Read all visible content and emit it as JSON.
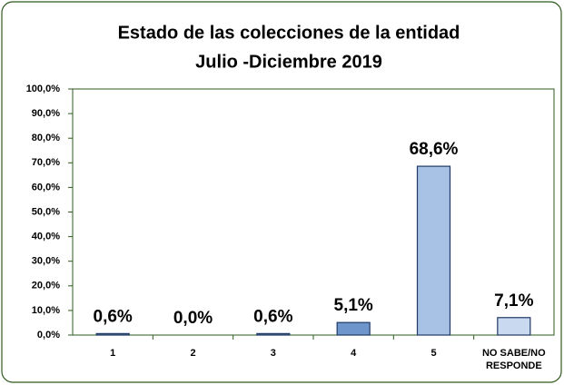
{
  "chart_data": {
    "type": "bar",
    "title": "Estado de las colecciones de la entidad",
    "subtitle": "Julio -Diciembre 2019",
    "categories": [
      "1",
      "2",
      "3",
      "4",
      "5",
      "NO SABE/NO RESPONDE"
    ],
    "values": [
      0.6,
      0.0,
      0.6,
      5.1,
      68.6,
      7.1
    ],
    "value_labels": [
      "0,6%",
      "0,0%",
      "0,6%",
      "5,1%",
      "68,6%",
      "7,1%"
    ],
    "colors": [
      "#4f6e9c",
      "#4f6e9c",
      "#4f6e9c",
      "#6f96cc",
      "#a7c2e5",
      "#c9d9ef"
    ],
    "ylim": [
      0,
      100
    ],
    "yticks": [
      {
        "value": 0,
        "label": "0,0%"
      },
      {
        "value": 10,
        "label": "10,0%"
      },
      {
        "value": 20,
        "label": "20,0%"
      },
      {
        "value": 30,
        "label": "30,0%"
      },
      {
        "value": 40,
        "label": "40,0%"
      },
      {
        "value": 50,
        "label": "50,0%"
      },
      {
        "value": 60,
        "label": "60,0%"
      },
      {
        "value": 70,
        "label": "70,0%"
      },
      {
        "value": 80,
        "label": "80,0%"
      },
      {
        "value": 90,
        "label": "90,0%"
      },
      {
        "value": 100,
        "label": "100,0%"
      }
    ],
    "grid": false
  }
}
